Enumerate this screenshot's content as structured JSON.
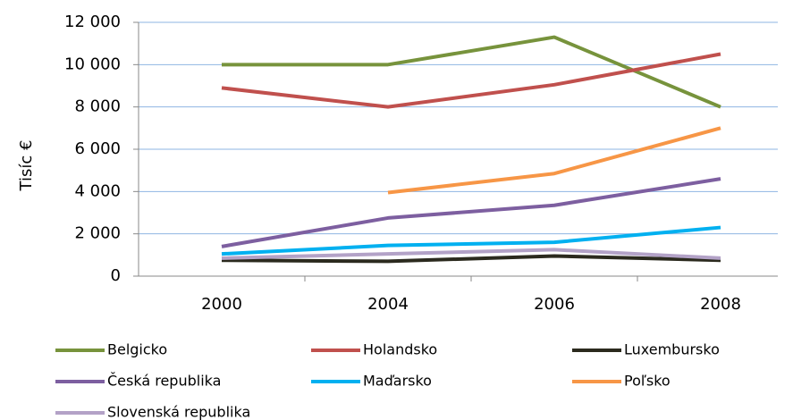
{
  "chart_data": {
    "type": "line",
    "y_label": "Tisíc €",
    "categories": [
      "2000",
      "2004",
      "2006",
      "2008"
    ],
    "series": [
      {
        "name": "Belgicko",
        "color": "#77933c",
        "values": [
          10000,
          10000,
          11300,
          8000
        ]
      },
      {
        "name": "Holandsko",
        "color": "#c0504d",
        "values": [
          8900,
          8000,
          9050,
          10500
        ]
      },
      {
        "name": "Luxembursko",
        "color": "#2b2a1e",
        "values": [
          750,
          700,
          950,
          750
        ]
      },
      {
        "name": "Česká republika",
        "color": "#7d5fa0",
        "values": [
          1400,
          2750,
          3350,
          4600
        ]
      },
      {
        "name": "Maďarsko",
        "color": "#00b0f0",
        "values": [
          1050,
          1450,
          1600,
          2300
        ]
      },
      {
        "name": "Poľsko",
        "color": "#f79646",
        "values": [
          null,
          3950,
          4850,
          7000
        ]
      },
      {
        "name": "Slovenská republika",
        "color": "#b3a2c7",
        "values": [
          850,
          1050,
          1250,
          850
        ]
      }
    ],
    "ylim": [
      0,
      12000
    ],
    "yticks": [
      0,
      {
        "value": 2000,
        "label": "2 000"
      },
      {
        "value": 4000,
        "label": "4 000"
      },
      {
        "value": 6000,
        "label": "6 000"
      },
      {
        "value": 8000,
        "label": "8 000"
      },
      {
        "value": 10000,
        "label": "10 000"
      },
      {
        "value": 12000,
        "label": "12 000"
      }
    ],
    "grid": true
  }
}
